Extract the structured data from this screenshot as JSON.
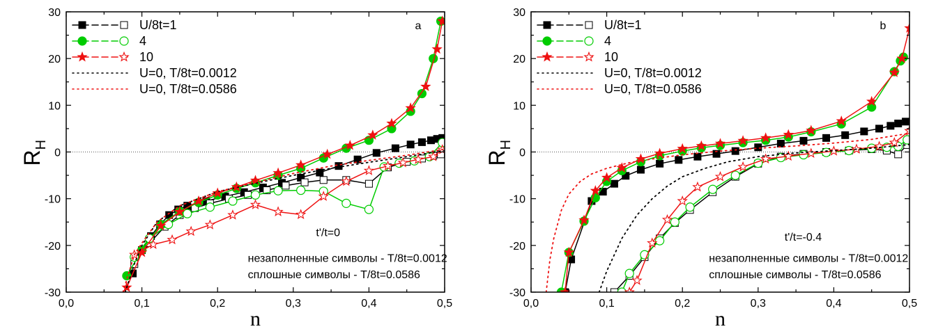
{
  "chart_data": [
    {
      "type": "line",
      "panel_label": "a",
      "xlabel": "n",
      "ylabel": "R",
      "ylabel_sub": "H",
      "xlim": [
        0.0,
        0.5
      ],
      "ylim": [
        -30,
        30
      ],
      "xticks": [
        0.0,
        0.1,
        0.2,
        0.3,
        0.4,
        0.5
      ],
      "xtick_labels": [
        "0,0",
        "0,1",
        "0,2",
        "0,3",
        "0,4",
        "0,5"
      ],
      "yticks": [
        -30,
        -20,
        -10,
        0,
        10,
        20,
        30
      ],
      "ytick_labels": [
        "-30",
        "-20",
        "-10",
        "0",
        "10",
        "20",
        "30"
      ],
      "zero_line": true,
      "annotations": [
        {
          "text": "t'/t=0",
          "x": 0.33,
          "y": -18
        },
        {
          "text": "незаполненные символы - T/8t=0.0012",
          "x": 0.24,
          "y": -23.5
        },
        {
          "text": "сплошные символы - T/8t=0.0586",
          "x": 0.24,
          "y": -27
        }
      ],
      "legend": [
        {
          "label": "U/8t=1",
          "color": "#000000",
          "marker": "square",
          "style": "dash"
        },
        {
          "label": "4",
          "color": "#00cc00",
          "marker": "circle",
          "style": "dash"
        },
        {
          "label": "10",
          "color": "#ee1111",
          "marker": "star",
          "style": "dash"
        },
        {
          "label": "U=0, T/8t=0.0012",
          "color": "#000000",
          "marker": "none",
          "style": "dot"
        },
        {
          "label": "U=0, T/8t=0.0586",
          "color": "#ee1111",
          "marker": "none",
          "style": "dot"
        }
      ],
      "series": [
        {
          "color": "#000000",
          "marker": "square",
          "filled": true,
          "style": "dash",
          "x": [
            0.088,
            0.1,
            0.112,
            0.124,
            0.136,
            0.148,
            0.16,
            0.185,
            0.21,
            0.235,
            0.26,
            0.285,
            0.31,
            0.335,
            0.36,
            0.385,
            0.41,
            0.435,
            0.455,
            0.47,
            0.482,
            0.49,
            0.497
          ],
          "y": [
            -26,
            -21,
            -18,
            -15.5,
            -13.5,
            -12.3,
            -11.5,
            -10.5,
            -9.5,
            -8.6,
            -7.6,
            -6.6,
            -5.5,
            -4.4,
            -3.0,
            -1.6,
            -0.2,
            0.8,
            1.6,
            2.1,
            2.5,
            2.8,
            3.0
          ]
        },
        {
          "color": "#000000",
          "marker": "square",
          "filled": false,
          "style": "dash",
          "x": [
            0.09,
            0.11,
            0.13,
            0.15,
            0.17,
            0.19,
            0.215,
            0.24,
            0.265,
            0.29,
            0.315,
            0.34,
            0.37,
            0.4,
            0.425,
            0.45,
            0.47,
            0.485,
            0.495
          ],
          "y": [
            -24,
            -19.5,
            -16,
            -13.5,
            -12,
            -11,
            -10,
            -9.2,
            -8.2,
            -7.2,
            -6.5,
            -6.0,
            -6.0,
            -6.8,
            -3.3,
            -2.1,
            -1.4,
            -0.8,
            -0.5
          ]
        },
        {
          "color": "#00cc00",
          "marker": "circle",
          "filled": true,
          "style": "dash",
          "x": [
            0.08,
            0.1,
            0.125,
            0.15,
            0.175,
            0.2,
            0.225,
            0.25,
            0.28,
            0.31,
            0.34,
            0.37,
            0.4,
            0.43,
            0.455,
            0.47,
            0.485,
            0.495
          ],
          "y": [
            -26.5,
            -21,
            -15.5,
            -12.7,
            -10.8,
            -9.2,
            -7.8,
            -6.6,
            -5.0,
            -3.5,
            -1.3,
            0.8,
            2.5,
            5.0,
            8.7,
            12.5,
            20.0,
            28
          ]
        },
        {
          "color": "#00cc00",
          "marker": "circle",
          "filled": false,
          "style": "dash",
          "x": [
            0.09,
            0.11,
            0.135,
            0.16,
            0.19,
            0.22,
            0.25,
            0.28,
            0.31,
            0.34,
            0.37,
            0.4,
            0.42,
            0.44,
            0.46,
            0.48,
            0.497
          ],
          "y": [
            -22.5,
            -18.5,
            -15.5,
            -13.2,
            -11.8,
            -10.5,
            -9.2,
            -8.3,
            -8.2,
            -8.4,
            -11.0,
            -12.3,
            -3.2,
            -2.4,
            -1.9,
            -1.0,
            2.0
          ]
        },
        {
          "color": "#ee1111",
          "marker": "star",
          "filled": true,
          "style": "dash",
          "x": [
            0.08,
            0.1,
            0.125,
            0.15,
            0.175,
            0.2,
            0.225,
            0.25,
            0.28,
            0.31,
            0.345,
            0.375,
            0.405,
            0.43,
            0.455,
            0.475,
            0.49,
            0.497
          ],
          "y": [
            -29,
            -21.5,
            -15.8,
            -12.8,
            -10.5,
            -8.8,
            -7.5,
            -6.1,
            -4.5,
            -2.8,
            -0.5,
            1.4,
            3.6,
            6.1,
            9.4,
            14.0,
            22.0,
            28
          ]
        },
        {
          "color": "#ee1111",
          "marker": "star",
          "filled": false,
          "style": "dash",
          "x": [
            0.09,
            0.115,
            0.14,
            0.165,
            0.19,
            0.22,
            0.25,
            0.28,
            0.31,
            0.34,
            0.37,
            0.4,
            0.425,
            0.445,
            0.465,
            0.485,
            0.497
          ],
          "y": [
            -22,
            -19.8,
            -18.8,
            -17.0,
            -15.6,
            -13.5,
            -11.3,
            -12.8,
            -13.4,
            -9.5,
            -6.3,
            -4.0,
            -3.0,
            -2.3,
            -1.6,
            -1.0,
            0.5
          ]
        },
        {
          "color": "#000000",
          "marker": "none",
          "filled": false,
          "style": "dot",
          "x": [
            0.078,
            0.09,
            0.1,
            0.12,
            0.15,
            0.2,
            0.25,
            0.3,
            0.35,
            0.4,
            0.45,
            0.5
          ],
          "y": [
            -30,
            -24,
            -20,
            -15,
            -11.5,
            -8.5,
            -6.7,
            -5.0,
            -3.5,
            -2.2,
            -1.0,
            0.3
          ]
        },
        {
          "color": "#ee1111",
          "marker": "none",
          "filled": false,
          "style": "dot",
          "x": [
            0.075,
            0.09,
            0.1,
            0.12,
            0.15,
            0.2,
            0.25,
            0.3,
            0.35,
            0.4,
            0.45,
            0.5
          ],
          "y": [
            -30,
            -22,
            -19.5,
            -15,
            -11.5,
            -8.5,
            -6.5,
            -4.6,
            -3.0,
            -1.8,
            -0.7,
            0.6
          ]
        }
      ]
    },
    {
      "type": "line",
      "panel_label": "b",
      "xlabel": "n",
      "ylabel": "R",
      "ylabel_sub": "H",
      "xlim": [
        0.0,
        0.5
      ],
      "ylim": [
        -30,
        30
      ],
      "xticks": [
        0.0,
        0.1,
        0.2,
        0.3,
        0.4,
        0.5
      ],
      "xtick_labels": [
        "0,0",
        "0,1",
        "0,2",
        "0,3",
        "0,4",
        "0,5"
      ],
      "yticks": [
        -30,
        -20,
        -10,
        0,
        10,
        20,
        30
      ],
      "ytick_labels": [
        "-30",
        "-20",
        "-10",
        "0",
        "10",
        "20",
        "30"
      ],
      "zero_line": true,
      "annotations": [
        {
          "text": "t'/t=-0.4",
          "x": 0.335,
          "y": -19
        },
        {
          "text": "незаполненные символы - T/8t=0.0012",
          "x": 0.235,
          "y": -23.5
        },
        {
          "text": "сплошные символы - T/8t=0.0586",
          "x": 0.235,
          "y": -27
        }
      ],
      "legend": [
        {
          "label": "U/8t=1",
          "color": "#000000",
          "marker": "square",
          "style": "dash"
        },
        {
          "label": "4",
          "color": "#00cc00",
          "marker": "circle",
          "style": "dash"
        },
        {
          "label": "10",
          "color": "#ee1111",
          "marker": "star",
          "style": "dash"
        },
        {
          "label": "U=0, T/8t=0.0012",
          "color": "#000000",
          "marker": "none",
          "style": "dot"
        },
        {
          "label": "U=0, T/8t=0.0586",
          "color": "#ee1111",
          "marker": "none",
          "style": "dot"
        }
      ],
      "series": [
        {
          "color": "#000000",
          "marker": "square",
          "filled": true,
          "style": "dash",
          "x": [
            0.045,
            0.053,
            0.08,
            0.095,
            0.11,
            0.125,
            0.145,
            0.17,
            0.195,
            0.22,
            0.245,
            0.27,
            0.3,
            0.33,
            0.36,
            0.39,
            0.415,
            0.44,
            0.46,
            0.475,
            0.485,
            0.495
          ],
          "y": [
            -30,
            -23,
            -10.5,
            -8.5,
            -6.8,
            -5.1,
            -3.8,
            -2.5,
            -1.7,
            -1.0,
            -0.4,
            0.2,
            1.0,
            1.8,
            2.4,
            3.0,
            3.6,
            4.4,
            5.0,
            5.6,
            6.1,
            6.5
          ]
        },
        {
          "color": "#000000",
          "marker": "square",
          "filled": false,
          "style": "dash",
          "x": [
            0.11,
            0.13,
            0.15,
            0.17,
            0.19,
            0.21,
            0.24,
            0.27,
            0.3,
            0.33,
            0.36,
            0.39,
            0.42,
            0.45,
            0.47,
            0.485,
            0.497
          ],
          "y": [
            -30,
            -26.5,
            -22.5,
            -18.5,
            -15.2,
            -12.4,
            -8.6,
            -5.3,
            -2.5,
            -1.0,
            -0.4,
            0.0,
            0.3,
            0.6,
            0.3,
            -0.5,
            1.5
          ]
        },
        {
          "color": "#00cc00",
          "marker": "circle",
          "filled": true,
          "style": "dash",
          "x": [
            0.04,
            0.05,
            0.07,
            0.085,
            0.1,
            0.12,
            0.145,
            0.17,
            0.2,
            0.225,
            0.25,
            0.28,
            0.31,
            0.34,
            0.37,
            0.41,
            0.45,
            0.48,
            0.488,
            0.492
          ],
          "y": [
            -30,
            -21.5,
            -14.8,
            -9.8,
            -6.3,
            -4.0,
            -2.1,
            -0.8,
            0.2,
            0.9,
            1.4,
            2.0,
            2.5,
            3.2,
            4.3,
            6.0,
            9.6,
            17.2,
            19.5,
            20.3
          ]
        },
        {
          "color": "#00cc00",
          "marker": "circle",
          "filled": false,
          "style": "dash",
          "x": [
            0.12,
            0.13,
            0.15,
            0.17,
            0.19,
            0.21,
            0.24,
            0.27,
            0.3,
            0.33,
            0.36,
            0.39,
            0.42,
            0.45,
            0.47,
            0.485,
            0.497
          ],
          "y": [
            -30,
            -26,
            -22,
            -19,
            -15,
            -11.8,
            -8.0,
            -5.0,
            -2.4,
            -1.2,
            -0.6,
            -0.1,
            0.3,
            0.8,
            1.0,
            1.2,
            2.6
          ]
        },
        {
          "color": "#ee1111",
          "marker": "star",
          "filled": true,
          "style": "dash",
          "x": [
            0.045,
            0.05,
            0.07,
            0.085,
            0.1,
            0.12,
            0.145,
            0.17,
            0.2,
            0.225,
            0.25,
            0.28,
            0.31,
            0.34,
            0.37,
            0.41,
            0.45,
            0.48,
            0.49,
            0.5
          ],
          "y": [
            -30,
            -21.5,
            -14.6,
            -8.3,
            -5.5,
            -3.4,
            -1.5,
            -0.3,
            0.7,
            1.3,
            1.8,
            2.4,
            3.0,
            3.7,
            4.6,
            6.6,
            10.8,
            17.0,
            20.0,
            26.5
          ]
        },
        {
          "color": "#ee1111",
          "marker": "star",
          "filled": false,
          "style": "dash",
          "x": [
            0.13,
            0.14,
            0.16,
            0.18,
            0.2,
            0.22,
            0.25,
            0.28,
            0.31,
            0.34,
            0.37,
            0.4,
            0.43,
            0.46,
            0.48,
            0.5
          ],
          "y": [
            -30,
            -27.5,
            -19.5,
            -14.5,
            -10.5,
            -7.5,
            -5.3,
            -3.2,
            -1.5,
            -0.9,
            -0.3,
            0.2,
            0.6,
            1.2,
            2.0,
            4.5
          ]
        },
        {
          "color": "#000000",
          "marker": "none",
          "filled": false,
          "style": "dot",
          "x": [
            0.09,
            0.1,
            0.12,
            0.14,
            0.16,
            0.18,
            0.2,
            0.23,
            0.26,
            0.3,
            0.35,
            0.4,
            0.45,
            0.5
          ],
          "y": [
            -30,
            -25.5,
            -18.5,
            -13.5,
            -10,
            -7.3,
            -5.3,
            -3.5,
            -2.1,
            -1.0,
            -0.2,
            0.3,
            0.8,
            1.6
          ]
        },
        {
          "color": "#ee1111",
          "marker": "none",
          "filled": false,
          "style": "dot",
          "x": [
            0.02,
            0.025,
            0.03,
            0.04,
            0.05,
            0.065,
            0.08,
            0.1,
            0.13,
            0.16,
            0.2,
            0.25,
            0.3,
            0.35,
            0.4,
            0.45,
            0.5
          ],
          "y": [
            -30,
            -23,
            -18.5,
            -12.5,
            -9.0,
            -6.3,
            -4.7,
            -3.5,
            -2.3,
            -1.5,
            -0.6,
            0.2,
            0.8,
            1.3,
            1.9,
            2.7,
            4.0
          ]
        }
      ]
    }
  ]
}
